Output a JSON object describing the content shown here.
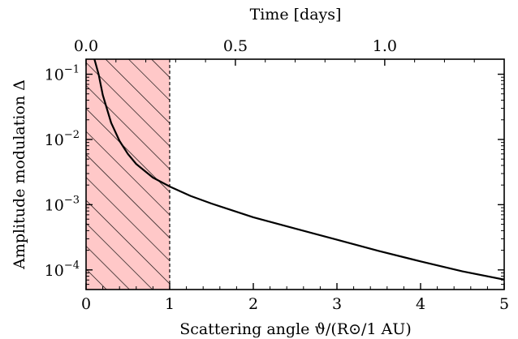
{
  "chart_data": {
    "type": "line",
    "xlabel": "Scattering angle ϑ/(R⊙/1 AU)",
    "top_xlabel": "Time [days]",
    "ylabel": "Amplitude modulation Δ",
    "xlim": [
      0,
      5
    ],
    "ylim": [
      5e-05,
      0.17
    ],
    "yscale": "log",
    "top_xlim": [
      0,
      1.4
    ],
    "x_ticks": [
      0,
      1,
      2,
      3,
      4,
      5
    ],
    "x_tick_labels": [
      "0",
      "1",
      "2",
      "3",
      "4",
      "5"
    ],
    "top_x_ticks": [
      0.0,
      0.5,
      1.0
    ],
    "top_x_tick_labels": [
      "0.0",
      "0.5",
      "1.0"
    ],
    "y_ticks": [
      0.1,
      0.01,
      0.001,
      0.0001
    ],
    "y_tick_labels": [
      {
        "base": "10",
        "exp": "−1"
      },
      {
        "base": "10",
        "exp": "−2"
      },
      {
        "base": "10",
        "exp": "−3"
      },
      {
        "base": "10",
        "exp": "−4"
      }
    ],
    "grid": false,
    "shaded_region": {
      "x": [
        0,
        1
      ],
      "color": "#ffc8c8",
      "hatch": "diagonal",
      "boundary": "dashed at x=1"
    },
    "series": [
      {
        "color": "#000000",
        "x": [
          0.1,
          0.15,
          0.2,
          0.3,
          0.4,
          0.5,
          0.6,
          0.8,
          1.0,
          1.25,
          1.5,
          2.0,
          2.5,
          3.0,
          3.5,
          4.0,
          4.5,
          5.0
        ],
        "y": [
          0.17,
          0.1,
          0.048,
          0.018,
          0.0095,
          0.006,
          0.0042,
          0.0026,
          0.0019,
          0.00136,
          0.00104,
          0.00064,
          0.00043,
          0.00029,
          0.000195,
          0.000135,
          9.5e-05,
          7.1e-05
        ]
      }
    ]
  }
}
